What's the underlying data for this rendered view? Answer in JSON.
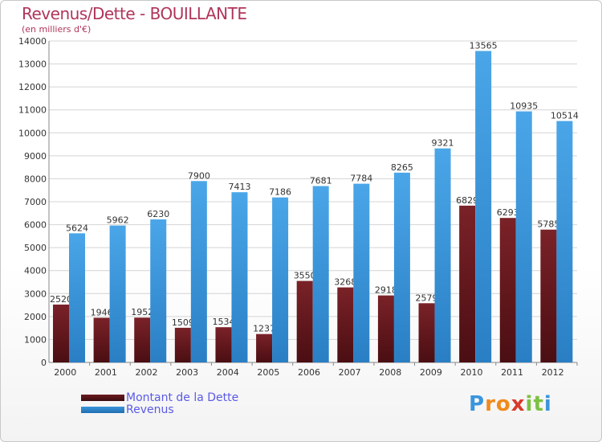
{
  "chart_data": {
    "type": "bar",
    "title": "Revenus/Dette - BOUILLANTE",
    "subtitle": "(en milliers d'€)",
    "categories": [
      "2000",
      "2001",
      "2002",
      "2003",
      "2004",
      "2005",
      "2006",
      "2007",
      "2008",
      "2009",
      "2010",
      "2011",
      "2012"
    ],
    "series": [
      {
        "name": "Montant de la Dette",
        "color": "#6b1a1f",
        "values": [
          2520,
          1946,
          1952,
          1509,
          1534,
          1237,
          3550,
          3268,
          2918,
          2579,
          6829,
          6293,
          5785
        ],
        "labels": [
          "2520",
          "1946",
          "1952",
          "1509",
          "1534",
          "1237",
          "3550",
          "3268",
          "2918",
          "2579",
          "6829",
          "6293",
          "5785"
        ]
      },
      {
        "name": "Revenus",
        "color": "#3a95dd",
        "values": [
          5624,
          5962,
          6230,
          7900,
          7413,
          7186,
          7681,
          7784,
          8265,
          9321,
          13565,
          10935,
          10514
        ],
        "labels": [
          "5624",
          "5962",
          "6230",
          "7900",
          "7413",
          "7186",
          "7681",
          "7784",
          "8265",
          "9321",
          "13565",
          "10935",
          "10514"
        ]
      }
    ],
    "ylim": [
      0,
      14000
    ],
    "yticks": [
      "0",
      "1000",
      "2000",
      "3000",
      "4000",
      "5000",
      "6000",
      "7000",
      "8000",
      "9000",
      "10000",
      "11000",
      "12000",
      "13000",
      "14000"
    ],
    "grid": true,
    "legend_position": "bottom-left"
  },
  "legend": {
    "items": [
      {
        "label": "Montant de la Dette",
        "color": "#6b1a1f"
      },
      {
        "label": "Revenus",
        "color": "#3a95dd"
      }
    ]
  },
  "logo": {
    "letters": [
      "P",
      "r",
      "o",
      "x",
      "i",
      "t",
      "i"
    ],
    "colors": [
      "#3a95dd",
      "#f08a1c",
      "#f08a1c",
      "#d93a2a",
      "#7cc142",
      "#7cc142",
      "#3a95dd"
    ]
  }
}
